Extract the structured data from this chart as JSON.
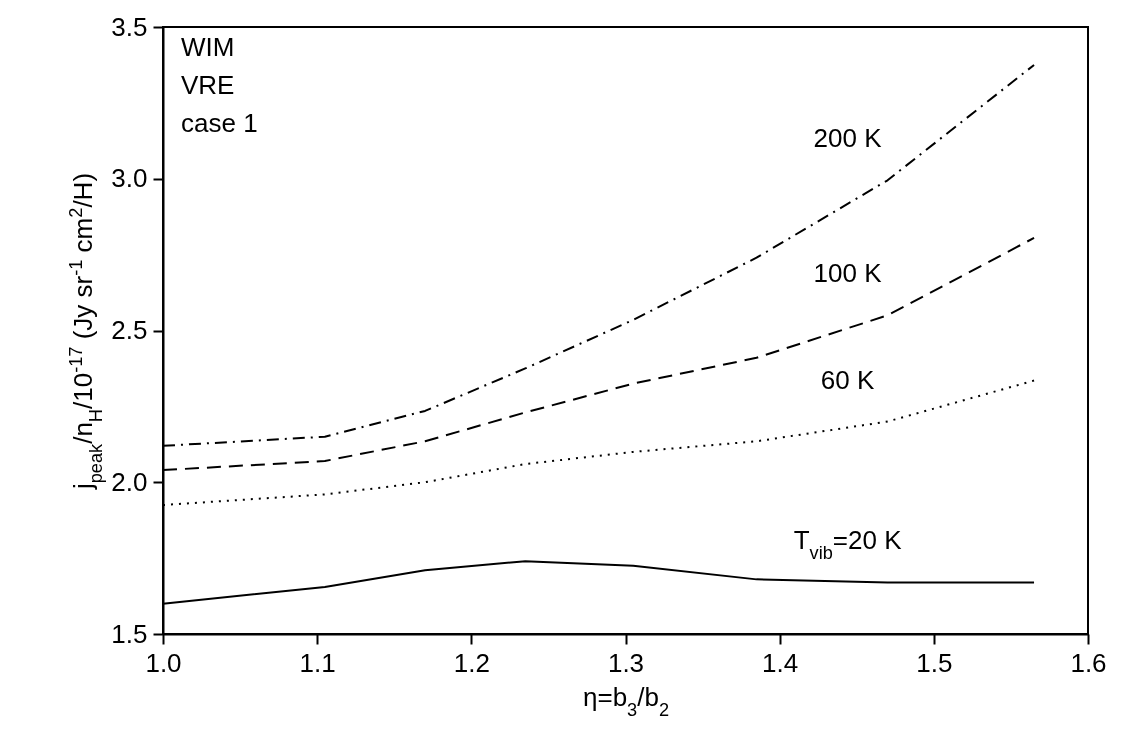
{
  "chart_data": {
    "type": "line",
    "xlabel": "η=b$_{3}$/b$_{2}$",
    "ylabel": "j$_{peak}$/n$_{H}$/10$^{-17}$ (Jy sr$^{-1}$ cm$^{2}$/H)",
    "annotations": [
      "WIM",
      "VRE",
      "case 1"
    ],
    "x": [
      1.0,
      1.105,
      1.17,
      1.235,
      1.305,
      1.385,
      1.47,
      1.565
    ],
    "series": [
      {
        "name": "T$_{vib}$=20 K",
        "color": "#000000",
        "line_style": "solid",
        "values": [
          1.6,
          1.655,
          1.71,
          1.74,
          1.725,
          1.68,
          1.67,
          1.67
        ]
      },
      {
        "name": "60 K",
        "color": "#000000",
        "line_style": "dotted",
        "values": [
          1.925,
          1.96,
          2.0,
          2.06,
          2.1,
          2.135,
          2.2,
          2.335
        ]
      },
      {
        "name": "100 K",
        "color": "#000000",
        "line_style": "dashed",
        "values": [
          2.04,
          2.07,
          2.135,
          2.23,
          2.325,
          2.41,
          2.55,
          2.805
        ]
      },
      {
        "name": "200 K",
        "color": "#000000",
        "line_style": "dashdot",
        "values": [
          2.12,
          2.15,
          2.235,
          2.375,
          2.535,
          2.74,
          2.995,
          3.375
        ]
      }
    ],
    "xlim": [
      1.0,
      1.6
    ],
    "xticks": [
      {
        "value": 1.0,
        "label": "1.0"
      },
      1.1,
      1.2,
      1.3,
      1.4,
      1.5,
      1.6
    ],
    "ylim": [
      1.5,
      3.5
    ],
    "yticks": [
      1.5,
      {
        "value": 2.0,
        "label": "2.0"
      },
      2.5,
      {
        "value": 3.0,
        "label": "3.0"
      },
      3.5
    ],
    "grid": false
  }
}
